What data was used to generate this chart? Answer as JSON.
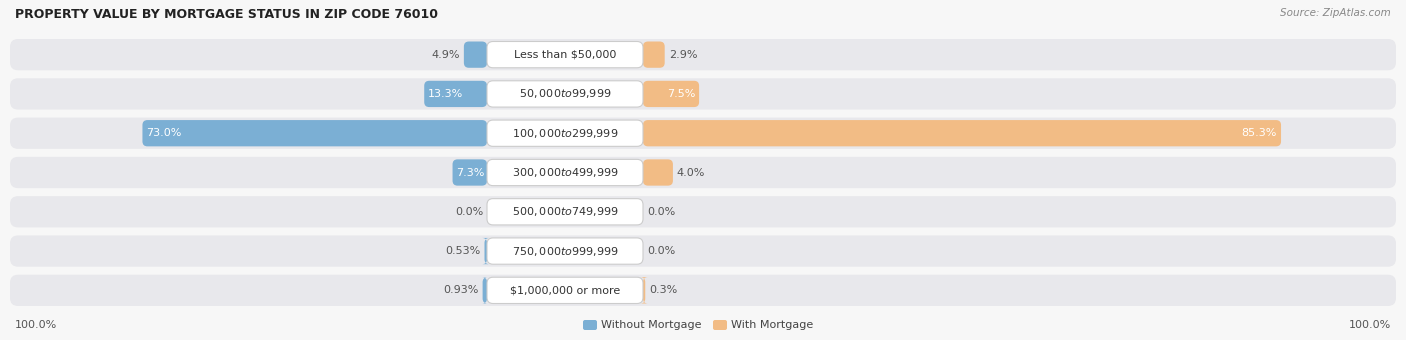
{
  "title": "Property Value by Mortgage Status in Zip Code 76010",
  "source": "Source: ZipAtlas.com",
  "categories": [
    "Less than $50,000",
    "$50,000 to $99,999",
    "$100,000 to $299,999",
    "$300,000 to $499,999",
    "$500,000 to $749,999",
    "$750,000 to $999,999",
    "$1,000,000 or more"
  ],
  "without_mortgage": [
    4.9,
    13.3,
    73.0,
    7.3,
    0.0,
    0.53,
    0.93
  ],
  "with_mortgage": [
    2.9,
    7.5,
    85.3,
    4.0,
    0.0,
    0.0,
    0.3
  ],
  "bar_color_without": "#7bafd4",
  "bar_color_with": "#f2bc85",
  "bg_color_row_light": "#ebebee",
  "bg_color_row_dark": "#e0e0e4",
  "row_bg_color": "#e8e8ec",
  "center_label_bg": "#ffffff",
  "center_label_border": "#cccccc",
  "title_color": "#222222",
  "source_color": "#888888",
  "axis_label_color": "#555555",
  "value_label_color": "#555555",
  "white_text_color": "#ffffff",
  "max_val": 100.0,
  "scale": 0.86
}
